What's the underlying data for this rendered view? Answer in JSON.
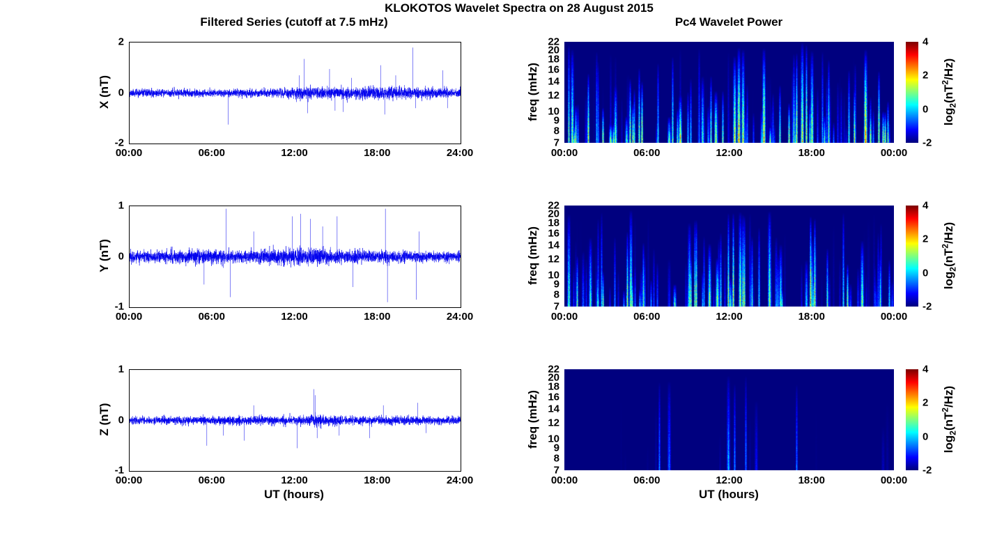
{
  "title": "KLOKOTOS Wavelet Spectra on 28 August 2015",
  "left_column_title": "Filtered Series (cutoff at 7.5 mHz)",
  "right_column_title": "Pc4 Wavelet Power",
  "xlabel": "UT (hours)",
  "colorbar": {
    "ticks": [
      4,
      2,
      0,
      -2
    ],
    "label": {
      "prefix": "log",
      "sub": "2",
      "mid": "(nT",
      "sup": "2",
      "suffix": "/Hz)"
    }
  },
  "chart_data": [
    {
      "id": "x-filtered-series",
      "type": "line",
      "ylabel": "X (nT)",
      "ylim": [
        -2,
        2
      ],
      "yticks": [
        2,
        0,
        -2
      ],
      "xlim_hours": [
        0,
        24
      ],
      "xticks": [
        "00:00",
        "06:00",
        "12:00",
        "18:00",
        "24:00"
      ],
      "line_color": "#0000EE",
      "seed": 11,
      "noise_envelope": [
        [
          0,
          0.07
        ],
        [
          6,
          0.07
        ],
        [
          11,
          0.08
        ],
        [
          12.5,
          0.12
        ],
        [
          15,
          0.11
        ],
        [
          17.5,
          0.13
        ],
        [
          19,
          0.12
        ],
        [
          21,
          0.1
        ],
        [
          24,
          0.09
        ]
      ],
      "spikes": [
        [
          7.15,
          -1.25
        ],
        [
          12.3,
          0.7
        ],
        [
          12.65,
          1.35
        ],
        [
          12.9,
          -0.8
        ],
        [
          14.5,
          0.95
        ],
        [
          14.9,
          -0.7
        ],
        [
          15.5,
          -0.75
        ],
        [
          16.1,
          0.6
        ],
        [
          18.2,
          1.1
        ],
        [
          18.5,
          -0.85
        ],
        [
          19.3,
          0.7
        ],
        [
          20.55,
          1.8
        ],
        [
          20.75,
          -0.6
        ],
        [
          22.7,
          0.9
        ],
        [
          23.05,
          -0.6
        ]
      ]
    },
    {
      "id": "y-filtered-series",
      "type": "line",
      "ylabel": "Y (nT)",
      "ylim": [
        -1,
        1
      ],
      "yticks": [
        1,
        0,
        -1
      ],
      "xlim_hours": [
        0,
        24
      ],
      "xticks": [
        "00:00",
        "06:00",
        "12:00",
        "18:00",
        "24:00"
      ],
      "line_color": "#0000EE",
      "seed": 22,
      "noise_envelope": [
        [
          0,
          0.05
        ],
        [
          3,
          0.06
        ],
        [
          5,
          0.07
        ],
        [
          8,
          0.06
        ],
        [
          11,
          0.08
        ],
        [
          13,
          0.08
        ],
        [
          15,
          0.07
        ],
        [
          17,
          0.06
        ],
        [
          19,
          0.06
        ],
        [
          21,
          0.05
        ],
        [
          24,
          0.045
        ]
      ],
      "spikes": [
        [
          5.4,
          -0.55
        ],
        [
          7.0,
          0.95
        ],
        [
          7.3,
          -0.8
        ],
        [
          9.0,
          0.5
        ],
        [
          11.8,
          0.8
        ],
        [
          12.4,
          0.85
        ],
        [
          13.1,
          0.75
        ],
        [
          14.0,
          0.6
        ],
        [
          15.05,
          0.8
        ],
        [
          16.2,
          -0.6
        ],
        [
          18.55,
          0.95
        ],
        [
          18.7,
          -0.9
        ],
        [
          20.8,
          -0.85
        ],
        [
          21.0,
          0.5
        ]
      ]
    },
    {
      "id": "z-filtered-series",
      "type": "line",
      "ylabel": "Z (nT)",
      "ylim": [
        -1,
        1
      ],
      "yticks": [
        1,
        0,
        -1
      ],
      "xlim_hours": [
        0,
        24
      ],
      "xticks": [
        "00:00",
        "06:00",
        "12:00",
        "18:00",
        "24:00"
      ],
      "line_color": "#0000EE",
      "seed": 33,
      "noise_envelope": [
        [
          0,
          0.035
        ],
        [
          6,
          0.038
        ],
        [
          9,
          0.042
        ],
        [
          12,
          0.038
        ],
        [
          13.5,
          0.06
        ],
        [
          16,
          0.04
        ],
        [
          20,
          0.04
        ],
        [
          24,
          0.035
        ]
      ],
      "spikes": [
        [
          5.6,
          -0.5
        ],
        [
          6.8,
          -0.3
        ],
        [
          8.3,
          -0.4
        ],
        [
          9.0,
          0.3
        ],
        [
          12.15,
          -0.55
        ],
        [
          13.35,
          0.62
        ],
        [
          13.45,
          0.5
        ],
        [
          13.6,
          -0.35
        ],
        [
          15.2,
          -0.3
        ],
        [
          17.4,
          -0.35
        ],
        [
          18.4,
          0.3
        ],
        [
          20.9,
          0.35
        ],
        [
          21.5,
          -0.25
        ]
      ]
    },
    {
      "id": "x-wavelet-power",
      "type": "heatmap",
      "ylabel": "freq (mHz)",
      "yticks": [
        22,
        20,
        18,
        16,
        14,
        12,
        10,
        9,
        8,
        7
      ],
      "freq_range": [
        7,
        22
      ],
      "xlim_hours": [
        0,
        24
      ],
      "xticks": [
        "00:00",
        "06:00",
        "12:00",
        "18:00",
        "00:00"
      ],
      "colormap": "jet",
      "clim": [
        -2,
        4
      ],
      "seed": 44,
      "n_streaks": 130,
      "activity": 0.95,
      "major_streaks": [
        [
          0.3,
          2.0
        ],
        [
          12.4,
          3.2
        ],
        [
          12.7,
          4.0
        ],
        [
          13.0,
          3.0
        ],
        [
          14.5,
          3.5
        ],
        [
          16.9,
          2.8
        ],
        [
          17.3,
          3.2
        ],
        [
          17.6,
          3.0
        ],
        [
          18.0,
          2.6
        ],
        [
          21.9,
          3.8
        ]
      ]
    },
    {
      "id": "y-wavelet-power",
      "type": "heatmap",
      "ylabel": "freq (mHz)",
      "yticks": [
        22,
        20,
        18,
        16,
        14,
        12,
        10,
        9,
        8,
        7
      ],
      "freq_range": [
        7,
        22
      ],
      "xlim_hours": [
        0,
        24
      ],
      "xticks": [
        "00:00",
        "06:00",
        "12:00",
        "18:00",
        "00:00"
      ],
      "colormap": "jet",
      "clim": [
        -2,
        4
      ],
      "seed": 55,
      "n_streaks": 120,
      "activity": 0.85,
      "major_streaks": [
        [
          0.3,
          1.8
        ],
        [
          4.8,
          2.2
        ],
        [
          9.5,
          2.0
        ],
        [
          11.9,
          2.5
        ],
        [
          12.3,
          3.0
        ],
        [
          12.8,
          2.6
        ],
        [
          13.1,
          2.4
        ],
        [
          14.9,
          2.4
        ],
        [
          17.9,
          3.6
        ],
        [
          18.2,
          3.0
        ]
      ]
    },
    {
      "id": "z-wavelet-power",
      "type": "heatmap",
      "ylabel": "freq (mHz)",
      "yticks": [
        22,
        20,
        18,
        16,
        14,
        12,
        10,
        9,
        8,
        7
      ],
      "freq_range": [
        7,
        22
      ],
      "xlim_hours": [
        0,
        24
      ],
      "xticks": [
        "00:00",
        "06:00",
        "12:00",
        "18:00",
        "00:00"
      ],
      "colormap": "jet",
      "clim": [
        -2,
        4
      ],
      "seed": 66,
      "n_streaks": 10,
      "activity": 0.2,
      "major_streaks": [
        [
          6.9,
          0.2
        ],
        [
          7.6,
          0.0
        ],
        [
          11.9,
          0.6
        ],
        [
          12.4,
          0.3
        ],
        [
          13.2,
          0.2
        ],
        [
          16.9,
          0.1
        ]
      ]
    }
  ]
}
